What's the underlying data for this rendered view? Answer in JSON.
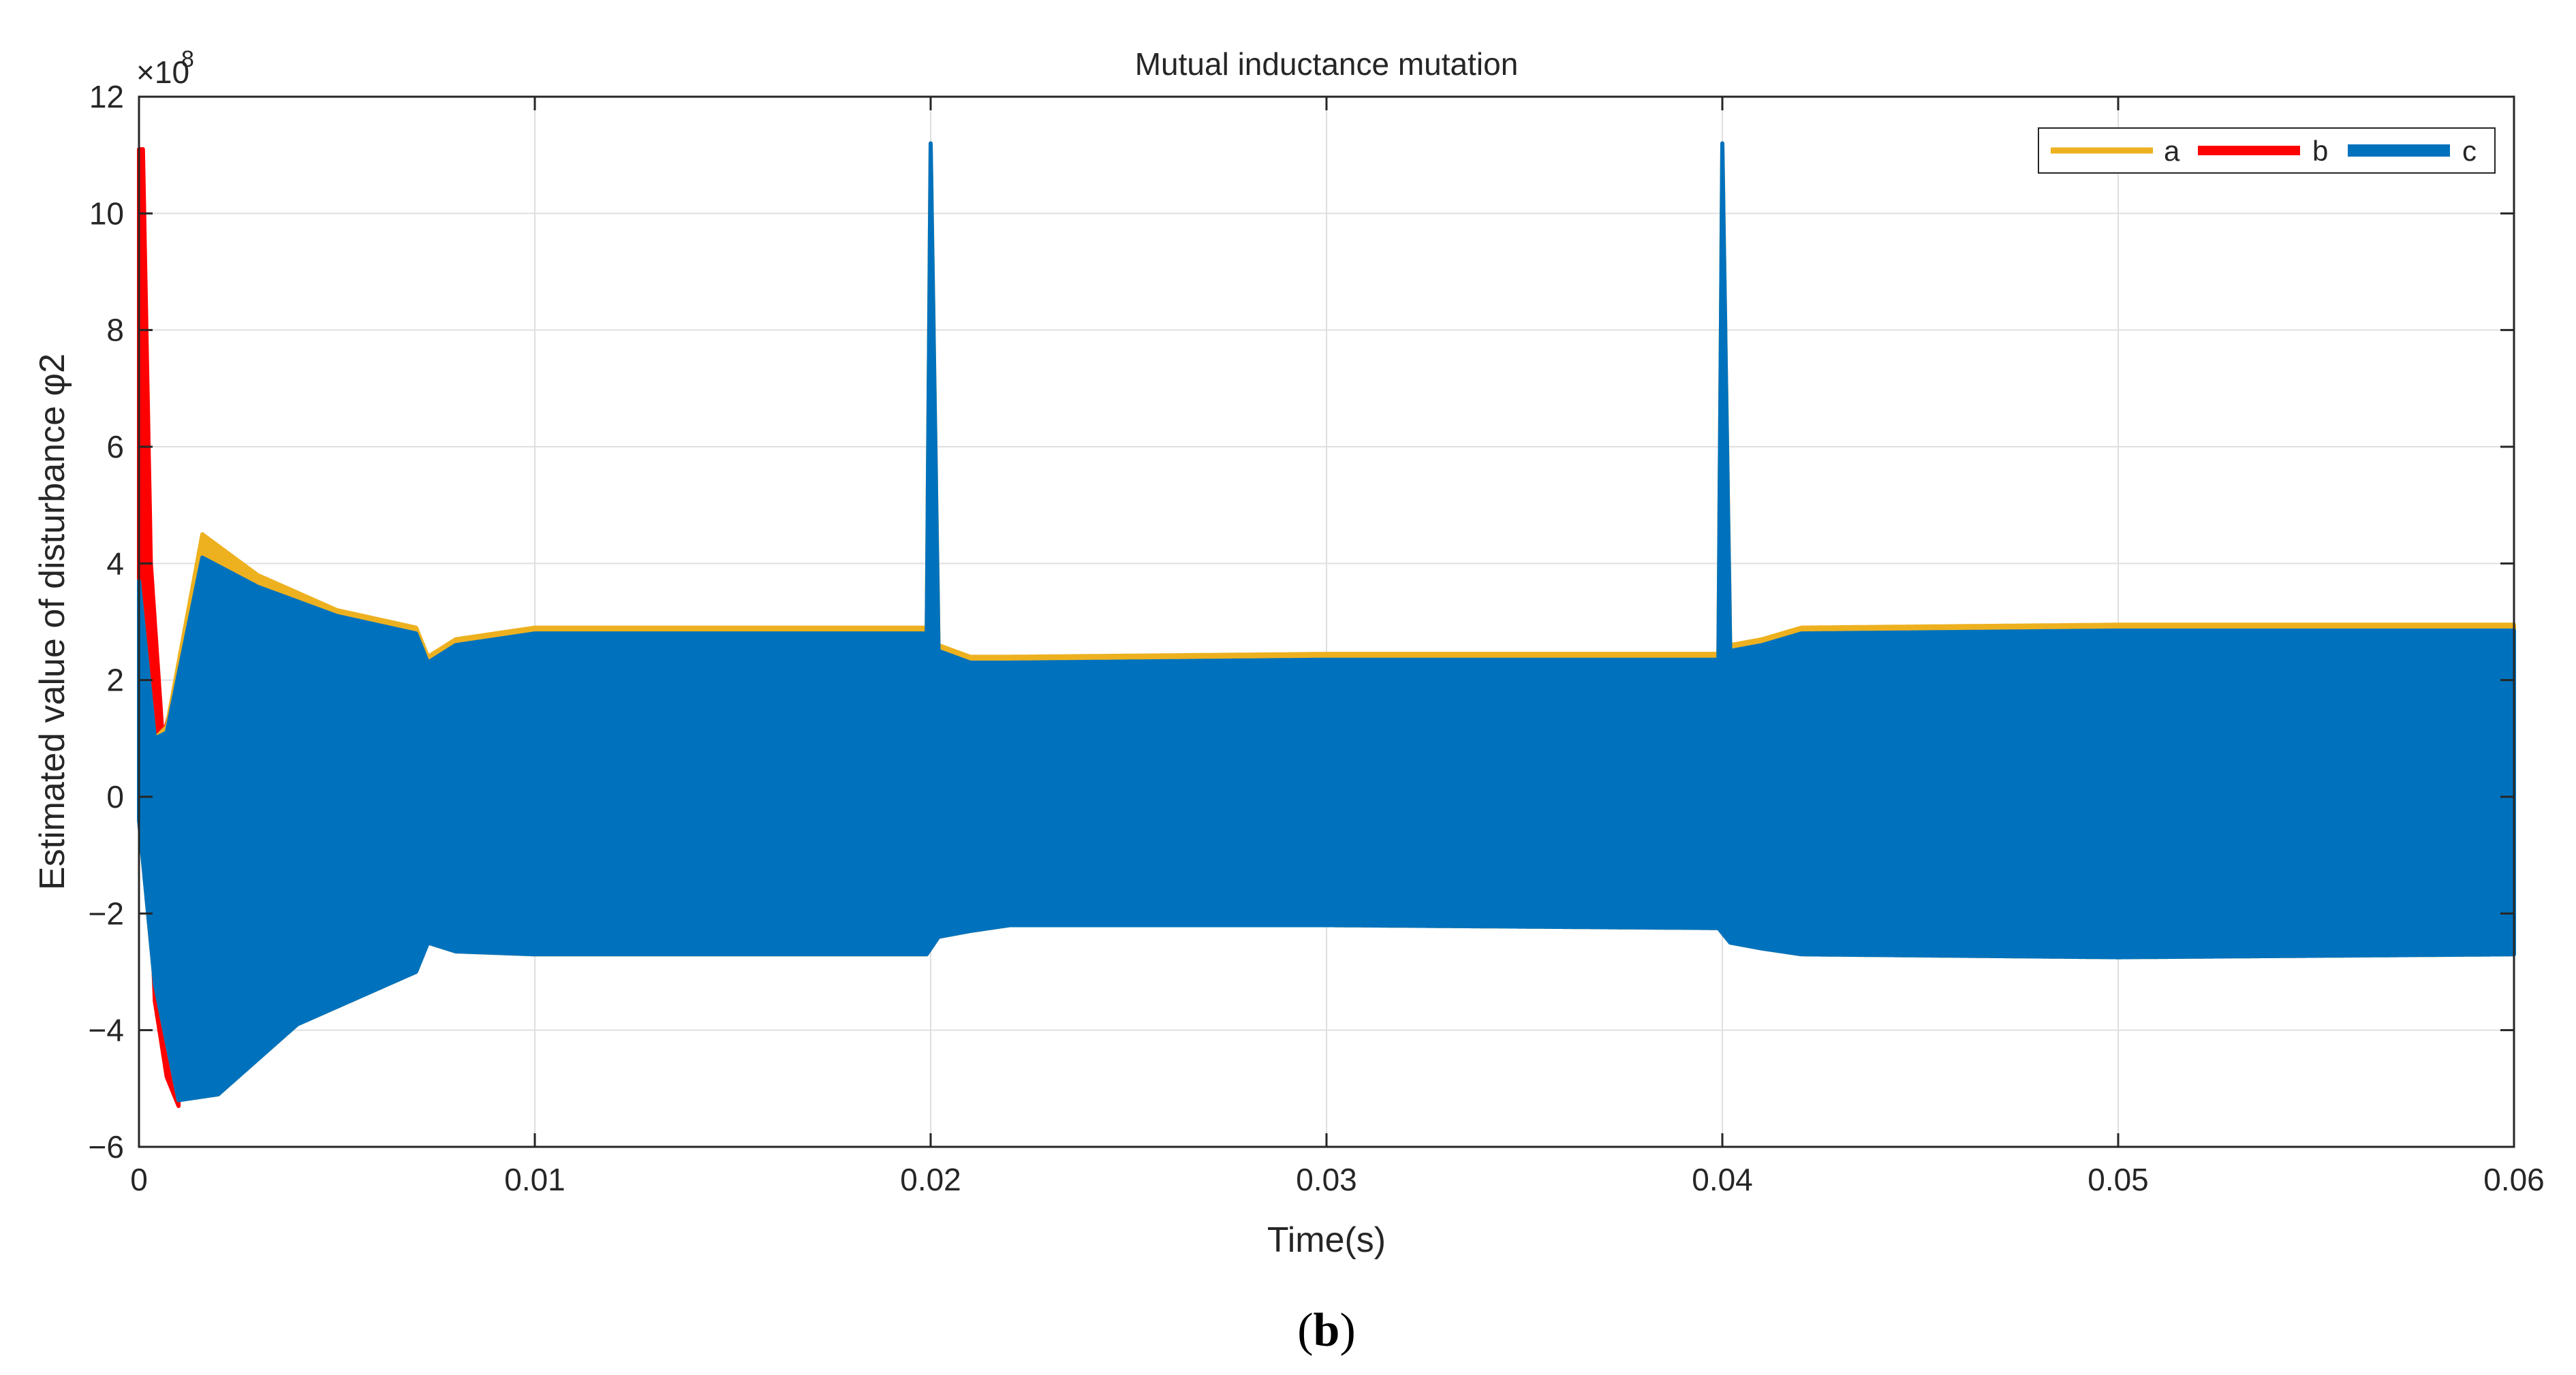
{
  "figure": {
    "caption_open": "(",
    "caption_letter": "b",
    "caption_close": ")"
  },
  "chart_data": {
    "type": "line",
    "title": "Mutual inductance mutation",
    "xlabel": "Time(s)",
    "ylabel": "Estimated value of disturbance φ2",
    "y_exponent_label": "×10",
    "y_exponent_power": "8",
    "xlim": [
      0,
      0.06
    ],
    "ylim": [
      -6,
      12
    ],
    "x_ticks": [
      0,
      0.01,
      0.02,
      0.03,
      0.04,
      0.05,
      0.06
    ],
    "x_tick_labels": [
      "0",
      "0.01",
      "0.02",
      "0.03",
      "0.04",
      "0.05",
      "0.06"
    ],
    "y_ticks": [
      -6,
      -4,
      -2,
      0,
      2,
      4,
      6,
      8,
      10,
      12
    ],
    "y_tick_labels": [
      "−6",
      "−4",
      "−2",
      "0",
      "2",
      "4",
      "6",
      "8",
      "10",
      "12"
    ],
    "grid": true,
    "legend_position": "top-right",
    "series": [
      {
        "name": "a",
        "color": "#EDB120",
        "upper_envelope": {
          "x": [
            0,
            0.0004,
            0.0007,
            0.0016,
            0.003,
            0.005,
            0.007,
            0.0073,
            0.008,
            0.01,
            0.0199,
            0.02,
            0.0202,
            0.021,
            0.022,
            0.03,
            0.0399,
            0.04,
            0.0402,
            0.041,
            0.042,
            0.05,
            0.06
          ],
          "y": [
            3.7,
            1.0,
            1.2,
            4.5,
            3.8,
            3.2,
            2.9,
            2.4,
            2.7,
            2.9,
            2.9,
            11.2,
            2.6,
            2.4,
            2.4,
            2.45,
            2.45,
            11.2,
            2.6,
            2.7,
            2.9,
            2.95,
            2.95
          ]
        },
        "lower_envelope": {
          "x": [
            0,
            0.0004,
            0.001,
            0.002,
            0.004,
            0.007,
            0.0073,
            0.008,
            0.01,
            0.0199,
            0.0202,
            0.021,
            0.022,
            0.03,
            0.0399,
            0.0402,
            0.041,
            0.042,
            0.05,
            0.06
          ],
          "y": [
            -0.4,
            -3.2,
            -5.2,
            -5.1,
            -3.9,
            -3.0,
            -2.5,
            -2.65,
            -2.7,
            -2.7,
            -2.4,
            -2.3,
            -2.2,
            -2.2,
            -2.25,
            -2.5,
            -2.6,
            -2.7,
            -2.75,
            -2.7
          ]
        }
      },
      {
        "name": "b",
        "color": "#FF0000",
        "upper_envelope": {
          "x": [
            0,
            0.0001,
            0.0003,
            0.0006,
            0.001
          ],
          "y": [
            11.1,
            11.1,
            4.0,
            1.0,
            2.0
          ]
        },
        "lower_envelope": {
          "x": [
            0,
            0.0004,
            0.0007,
            0.001,
            0.002
          ],
          "y": [
            3.0,
            -3.5,
            -4.8,
            -5.3,
            -5.2
          ]
        }
      },
      {
        "name": "c",
        "color": "#0072BD",
        "upper_envelope": {
          "x": [
            0,
            0.0004,
            0.0007,
            0.0016,
            0.003,
            0.005,
            0.007,
            0.0073,
            0.008,
            0.01,
            0.0199,
            0.02,
            0.0202,
            0.021,
            0.022,
            0.03,
            0.0399,
            0.04,
            0.0402,
            0.041,
            0.042,
            0.05,
            0.06
          ],
          "y": [
            3.7,
            1.0,
            1.1,
            4.1,
            3.6,
            3.1,
            2.8,
            2.3,
            2.6,
            2.8,
            2.8,
            11.2,
            2.5,
            2.3,
            2.3,
            2.35,
            2.35,
            11.2,
            2.5,
            2.6,
            2.8,
            2.85,
            2.85
          ]
        },
        "lower_envelope": {
          "x": [
            0,
            0.0004,
            0.001,
            0.002,
            0.004,
            0.007,
            0.0073,
            0.008,
            0.01,
            0.0199,
            0.0202,
            0.021,
            0.022,
            0.03,
            0.0399,
            0.0402,
            0.041,
            0.042,
            0.05,
            0.06
          ],
          "y": [
            -0.4,
            -3.2,
            -5.2,
            -5.1,
            -3.9,
            -3.0,
            -2.5,
            -2.65,
            -2.7,
            -2.7,
            -2.4,
            -2.3,
            -2.2,
            -2.2,
            -2.25,
            -2.5,
            -2.6,
            -2.7,
            -2.75,
            -2.7
          ]
        }
      }
    ]
  }
}
